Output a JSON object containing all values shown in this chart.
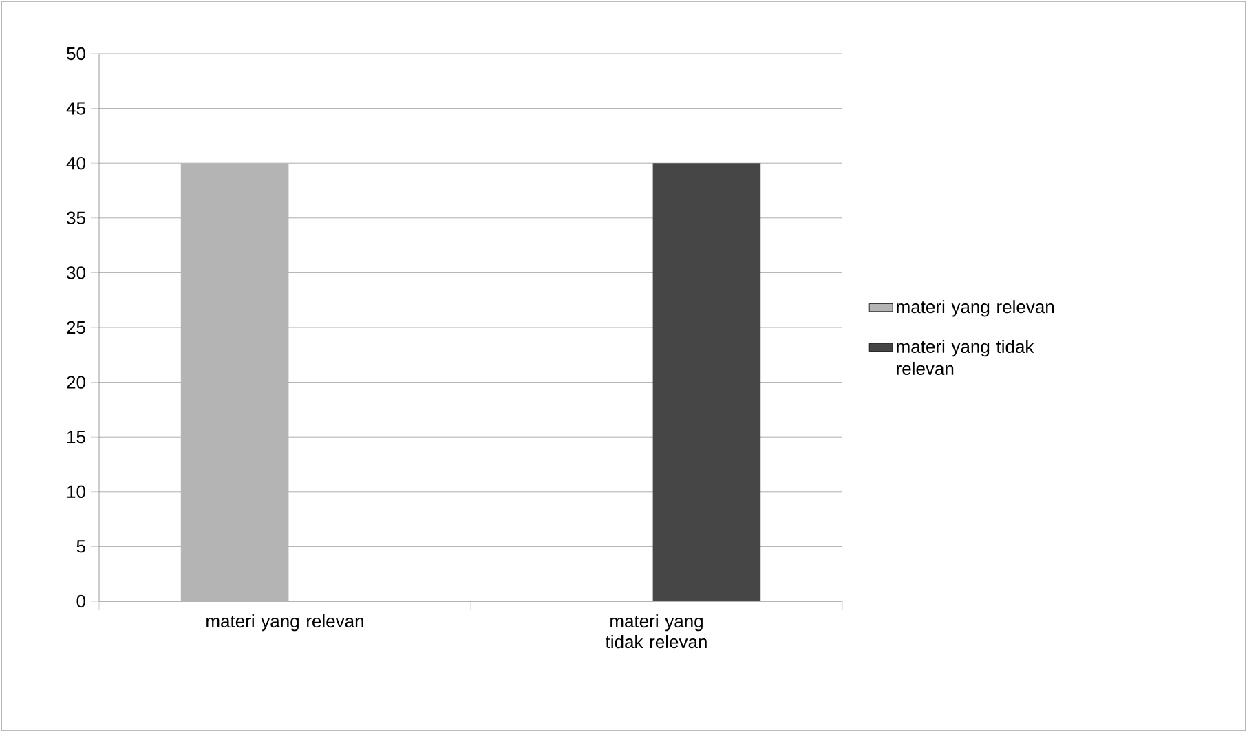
{
  "chart_data": {
    "type": "bar",
    "categories": [
      "materi yang relevan",
      "materi yang tidak relevan"
    ],
    "series": [
      {
        "name": "materi yang relevan",
        "color": "#b4b4b4",
        "values": [
          40,
          null
        ]
      },
      {
        "name": "materi yang tidak relevan",
        "color": "#464646",
        "values": [
          null,
          40
        ]
      }
    ],
    "ylim": [
      0,
      50
    ],
    "yticks": [
      0,
      5,
      10,
      15,
      20,
      25,
      30,
      35,
      40,
      45,
      50
    ],
    "grid": "y",
    "legend": "right"
  }
}
